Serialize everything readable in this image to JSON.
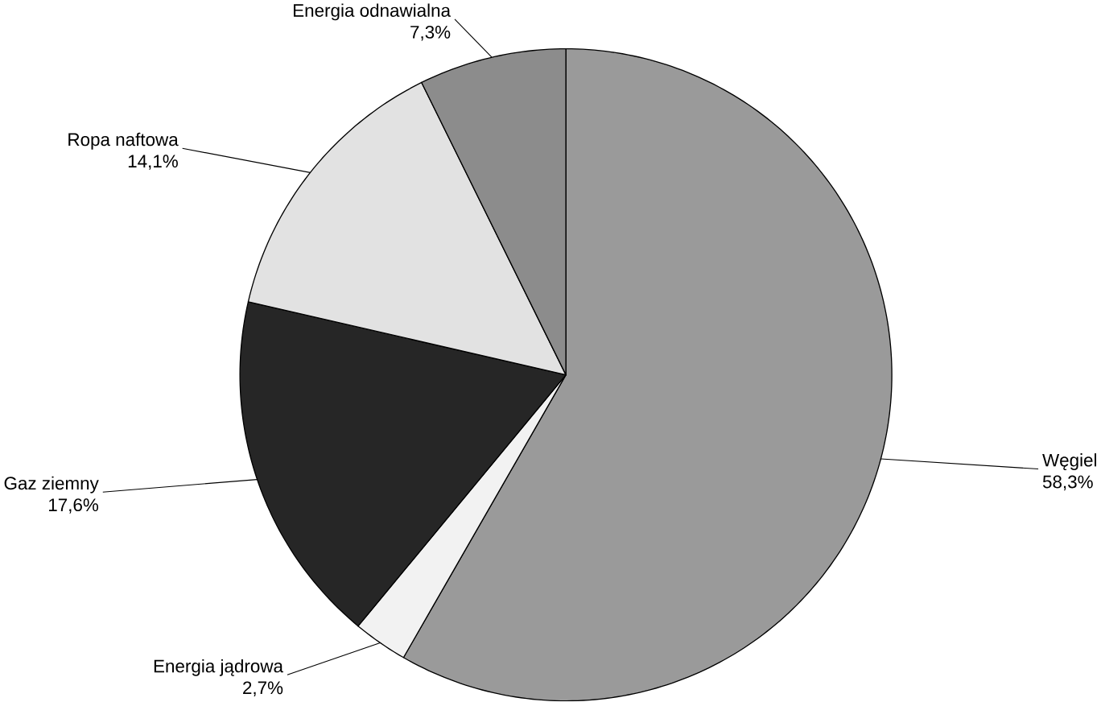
{
  "chart_data": {
    "type": "pie",
    "categories": [
      "Węgiel",
      "Energia jądrowa",
      "Gaz ziemny",
      "Ropa naftowa",
      "Energia odnawialna"
    ],
    "values": [
      58.3,
      2.7,
      17.6,
      14.1,
      7.3
    ],
    "colors": [
      "#9a9a9a",
      "#f2f2f2",
      "#262626",
      "#e2e2e2",
      "#8c8c8c"
    ],
    "value_labels": [
      "58,3%",
      "2,7%",
      "17,6%",
      "14,1%",
      "7,3%"
    ]
  }
}
